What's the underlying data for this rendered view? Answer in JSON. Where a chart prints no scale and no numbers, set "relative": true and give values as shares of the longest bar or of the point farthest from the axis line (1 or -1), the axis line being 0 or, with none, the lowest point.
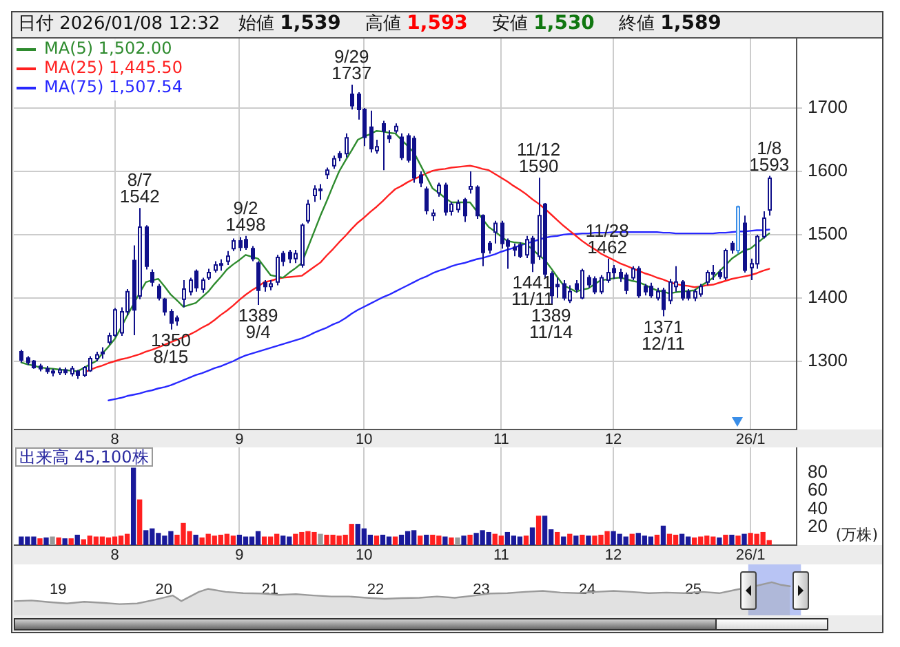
{
  "chart_data": [
    {
      "type": "candlestick",
      "title": "日付 2026/01/08 12:32",
      "annotations": [
        "始値 1,539",
        "高値 1,593",
        "安値 1,530",
        "終値 1,589",
        {
          "text": "8/7\n1542",
          "y": 1542
        },
        {
          "text": "1350\n8/15",
          "y": 1350
        },
        {
          "text": "9/2\n1498",
          "y": 1498
        },
        {
          "text": "1389\n9/4",
          "y": 1389
        },
        {
          "text": "9/29\n1737",
          "y": 1737
        },
        {
          "text": "1441\n11/11",
          "y": 1441
        },
        {
          "text": "11/12\n1590",
          "y": 1590
        },
        {
          "text": "1389\n11/14",
          "y": 1389
        },
        {
          "text": "11/28\n1462",
          "y": 1462
        },
        {
          "text": "1371\n12/11",
          "y": 1371
        },
        {
          "text": "1/8\n1593",
          "y": 1593
        }
      ],
      "categories": [
        null,
        null,
        null,
        null,
        null,
        null,
        null,
        null,
        null,
        null,
        null,
        null,
        null,
        null,
        null,
        "8",
        null,
        null,
        null,
        null,
        null,
        null,
        null,
        null,
        null,
        null,
        null,
        null,
        null,
        null,
        null,
        null,
        null,
        null,
        null,
        "9",
        null,
        null,
        null,
        null,
        null,
        null,
        null,
        null,
        null,
        null,
        null,
        null,
        null,
        null,
        null,
        null,
        null,
        null,
        null,
        "10",
        null,
        null,
        null,
        null,
        null,
        null,
        null,
        null,
        null,
        null,
        null,
        null,
        null,
        null,
        null,
        null,
        null,
        null,
        null,
        null,
        null,
        "11",
        null,
        null,
        null,
        null,
        null,
        null,
        null,
        null,
        null,
        null,
        null,
        null,
        null,
        null,
        null,
        null,
        null,
        "12",
        null,
        null,
        null,
        null,
        null,
        null,
        null,
        null,
        null,
        null,
        null,
        null,
        null,
        null,
        null,
        null,
        null,
        null,
        null,
        null,
        null,
        "26/1",
        null,
        null,
        null
      ],
      "ohlc": [
        [
          1315,
          1318,
          1298,
          1302
        ],
        [
          1305,
          1308,
          1294,
          1298
        ],
        [
          1300,
          1302,
          1288,
          1290
        ],
        [
          1292,
          1296,
          1284,
          1288
        ],
        [
          1288,
          1292,
          1280,
          1284
        ],
        [
          1284,
          1288,
          1276,
          1282
        ],
        [
          1282,
          1290,
          1278,
          1286
        ],
        [
          1286,
          1290,
          1278,
          1282
        ],
        [
          1280,
          1292,
          1276,
          1288
        ],
        [
          1284,
          1286,
          1272,
          1278
        ],
        [
          1278,
          1292,
          1275,
          1290
        ],
        [
          1285,
          1308,
          1283,
          1304
        ],
        [
          1304,
          1315,
          1300,
          1310
        ],
        [
          1312,
          1322,
          1304,
          1314
        ],
        [
          1330,
          1345,
          1326,
          1340
        ],
        [
          1341,
          1384,
          1338,
          1381
        ],
        [
          1345,
          1385,
          1340,
          1378
        ],
        [
          1378,
          1414,
          1372,
          1410
        ],
        [
          1459,
          1483,
          1341,
          1381
        ],
        [
          1403,
          1542,
          1398,
          1512
        ],
        [
          1512,
          1515,
          1445,
          1450
        ],
        [
          1440,
          1445,
          1418,
          1425
        ],
        [
          1418,
          1422,
          1396,
          1400
        ],
        [
          1398,
          1400,
          1372,
          1378
        ],
        [
          1378,
          1382,
          1350,
          1360
        ],
        [
          1368,
          1372,
          1356,
          1364
        ],
        [
          1398,
          1428,
          1385,
          1414
        ],
        [
          1410,
          1432,
          1404,
          1428
        ],
        [
          1442,
          1445,
          1410,
          1416
        ],
        [
          1414,
          1432,
          1408,
          1428
        ],
        [
          1432,
          1446,
          1428,
          1440
        ],
        [
          1444,
          1458,
          1440,
          1452
        ],
        [
          1452,
          1461,
          1443,
          1454
        ],
        [
          1458,
          1474,
          1452,
          1466
        ],
        [
          1478,
          1494,
          1474,
          1490
        ],
        [
          1490,
          1496,
          1474,
          1480
        ],
        [
          1492,
          1498,
          1476,
          1480
        ],
        [
          1478,
          1482,
          1458,
          1462
        ],
        [
          1455,
          1458,
          1389,
          1412
        ],
        [
          1424,
          1428,
          1410,
          1418
        ],
        [
          1418,
          1428,
          1412,
          1422
        ],
        [
          1425,
          1468,
          1420,
          1464
        ],
        [
          1470,
          1474,
          1450,
          1458
        ],
        [
          1472,
          1476,
          1455,
          1462
        ],
        [
          1462,
          1476,
          1455,
          1470
        ],
        [
          1452,
          1518,
          1448,
          1515
        ],
        [
          1522,
          1555,
          1518,
          1548
        ],
        [
          1562,
          1578,
          1552,
          1572
        ],
        [
          1570,
          1580,
          1555,
          1572
        ],
        [
          1595,
          1606,
          1588,
          1602
        ],
        [
          1609,
          1625,
          1604,
          1620
        ],
        [
          1628,
          1632,
          1616,
          1622
        ],
        [
          1628,
          1660,
          1622,
          1653
        ],
        [
          1722,
          1737,
          1698,
          1704
        ],
        [
          1722,
          1725,
          1682,
          1698
        ],
        [
          1698,
          1700,
          1640,
          1654
        ],
        [
          1670,
          1696,
          1630,
          1636
        ],
        [
          1633,
          1650,
          1628,
          1639
        ],
        [
          1675,
          1680,
          1602,
          1664
        ],
        [
          1656,
          1665,
          1645,
          1652
        ],
        [
          1664,
          1676,
          1660,
          1671
        ],
        [
          1654,
          1660,
          1618,
          1622
        ],
        [
          1656,
          1660,
          1614,
          1618
        ],
        [
          1652,
          1656,
          1582,
          1590
        ],
        [
          1594,
          1600,
          1575,
          1582
        ],
        [
          1572,
          1576,
          1532,
          1538
        ],
        [
          1530,
          1540,
          1522,
          1534
        ],
        [
          1566,
          1582,
          1560,
          1578
        ],
        [
          1578,
          1582,
          1530,
          1536
        ],
        [
          1537,
          1552,
          1530,
          1548
        ],
        [
          1540,
          1555,
          1535,
          1550
        ],
        [
          1555,
          1558,
          1520,
          1530
        ],
        [
          1572,
          1600,
          1565,
          1576
        ],
        [
          1575,
          1578,
          1525,
          1530
        ],
        [
          1530,
          1532,
          1450,
          1472
        ],
        [
          1486,
          1490,
          1470,
          1476
        ],
        [
          1504,
          1522,
          1486,
          1518
        ],
        [
          1518,
          1522,
          1478,
          1486
        ],
        [
          1490,
          1494,
          1446,
          1482
        ],
        [
          1480,
          1486,
          1466,
          1476
        ],
        [
          1484,
          1488,
          1463,
          1466
        ],
        [
          1468,
          1498,
          1463,
          1492
        ],
        [
          1494,
          1498,
          1441,
          1455
        ],
        [
          1466,
          1590,
          1460,
          1530
        ],
        [
          1548,
          1550,
          1432,
          1438
        ],
        [
          1438,
          1442,
          1389,
          1404
        ],
        [
          1421,
          1432,
          1400,
          1418
        ],
        [
          1422,
          1428,
          1396,
          1400
        ],
        [
          1396,
          1420,
          1392,
          1410
        ],
        [
          1422,
          1428,
          1408,
          1414
        ],
        [
          1400,
          1446,
          1398,
          1443
        ],
        [
          1432,
          1436,
          1416,
          1421
        ],
        [
          1430,
          1434,
          1406,
          1410
        ],
        [
          1410,
          1436,
          1406,
          1432
        ],
        [
          1428,
          1462,
          1424,
          1440
        ],
        [
          1446,
          1452,
          1430,
          1440
        ],
        [
          1440,
          1446,
          1425,
          1432
        ],
        [
          1436,
          1440,
          1406,
          1412
        ],
        [
          1432,
          1450,
          1428,
          1446
        ],
        [
          1446,
          1450,
          1400,
          1404
        ],
        [
          1418,
          1422,
          1404,
          1410
        ],
        [
          1418,
          1424,
          1400,
          1404
        ],
        [
          1400,
          1416,
          1396,
          1410
        ],
        [
          1412,
          1416,
          1371,
          1382
        ],
        [
          1396,
          1430,
          1390,
          1425
        ],
        [
          1418,
          1450,
          1410,
          1425
        ],
        [
          1425,
          1428,
          1396,
          1400
        ],
        [
          1410,
          1414,
          1396,
          1400
        ],
        [
          1400,
          1414,
          1395,
          1410
        ],
        [
          1406,
          1422,
          1402,
          1418
        ],
        [
          1425,
          1444,
          1420,
          1440
        ],
        [
          1438,
          1452,
          1428,
          1440
        ],
        [
          1440,
          1445,
          1430,
          1434
        ],
        [
          1432,
          1478,
          1428,
          1475
        ],
        [
          1486,
          1490,
          1470,
          1476
        ],
        [
          1475,
          1546,
          1470,
          1544
        ],
        [
          1518,
          1530,
          1440,
          1444
        ],
        [
          1448,
          1462,
          1428,
          1454
        ],
        [
          1454,
          1500,
          1446,
          1497
        ],
        [
          1497,
          1537,
          1494,
          1526
        ],
        [
          1539,
          1593,
          1530,
          1589
        ]
      ],
      "colors": [
        "#10108a",
        "#10108a",
        "#10108a",
        "#10108a",
        "#10108a",
        "#10108a",
        "#10108a",
        "#10108a",
        "#10108a",
        "#10108a",
        "#10108a",
        "#10108a",
        "#10108a",
        "#10108a",
        "#10108a",
        "#10108a",
        "#10108a",
        "#10108a",
        "#10108a",
        "#10108a",
        "#10108a",
        "#10108a",
        "#10108a",
        "#10108a",
        "#10108a",
        "#10108a",
        "#10108a",
        "#10108a",
        "#10108a",
        "#10108a",
        "#10108a",
        "#10108a",
        "#10108a",
        "#10108a",
        "#10108a",
        "#10108a",
        "#10108a",
        "#10108a",
        "#10108a",
        "#10108a",
        "#10108a",
        "#10108a",
        "#10108a",
        "#10108a",
        "#10108a",
        "#10108a",
        "#10108a",
        "#10108a",
        "#10108a",
        "#10108a",
        "#10108a",
        "#10108a",
        "#10108a",
        "#10108a",
        "#10108a",
        "#10108a",
        "#10108a",
        "#10108a",
        "#10108a",
        "#10108a",
        "#10108a",
        "#10108a",
        "#10108a",
        "#10108a",
        "#10108a",
        "#10108a",
        "#10108a",
        "#10108a",
        "#10108a",
        "#10108a",
        "#10108a",
        "#10108a",
        "#10108a",
        "#10108a",
        "#10108a",
        "#10108a",
        "#10108a",
        "#10108a",
        "#10108a",
        "#10108a",
        "#10108a",
        "#10108a",
        "#10108a",
        "#10108a",
        "#10108a",
        "#10108a",
        "#10108a",
        "#10108a",
        "#10108a",
        "#10108a",
        "#10108a",
        "#10108a",
        "#10108a",
        "#10108a",
        "#10108a",
        "#10108a",
        "#10108a",
        "#10108a",
        "#10108a",
        "#10108a",
        "#10108a",
        "#10108a",
        "#10108a",
        "#10108a",
        "#10108a",
        "#10108a",
        "#10108a",
        "#10108a",
        "#10108a",
        "#10108a",
        "#10108a",
        "#10108a",
        "#10108a",
        "#10108a",
        "#10108a",
        "#3a8ee8",
        "#10108a",
        "#10108a",
        "#10108a",
        "#10108a",
        "#10108a"
      ],
      "series": [
        {
          "type": "line",
          "name": "MA(5) 1,502.00",
          "color": "#2e8b2e",
          "values": [
            1298,
            1295,
            1293,
            1290,
            1289,
            1288,
            1287,
            1286,
            1285,
            1284,
            1289,
            1295,
            1300,
            1312,
            1323,
            1335,
            1353,
            1372,
            1390,
            1408,
            1425,
            1428,
            1430,
            1418,
            1405,
            1396,
            1386,
            1389,
            1392,
            1401,
            1410,
            1422,
            1433,
            1445,
            1453,
            1460,
            1468,
            1465,
            1462,
            1449,
            1436,
            1434,
            1432,
            1440,
            1447,
            1455,
            1480,
            1505,
            1530,
            1553,
            1577,
            1600,
            1617,
            1633,
            1650,
            1655,
            1659,
            1664,
            1663,
            1661,
            1660,
            1650,
            1640,
            1630,
            1611,
            1592,
            1573,
            1566,
            1558,
            1551,
            1551,
            1551,
            1551,
            1538,
            1525,
            1512,
            1505,
            1497,
            1490,
            1488,
            1487,
            1485,
            1477,
            1468,
            1460,
            1447,
            1433,
            1420,
            1415,
            1410,
            1413,
            1415,
            1422,
            1428,
            1429,
            1431,
            1432,
            1430,
            1427,
            1425,
            1421,
            1416,
            1412,
            1410,
            1407,
            1409,
            1410,
            1411,
            1412,
            1419,
            1425,
            1432,
            1442,
            1452,
            1462,
            1469,
            1475,
            1478,
            1486,
            1494,
            1502
          ]
        },
        {
          "type": "line",
          "name": "MA(25) 1,445.50",
          "color": "#ff2020",
          "values": [
            null,
            null,
            null,
            null,
            null,
            null,
            null,
            null,
            null,
            null,
            1282,
            1286,
            1290,
            1293,
            1297,
            1300,
            1303,
            1305,
            1308,
            1311,
            1315,
            1318,
            1322,
            1326,
            1330,
            1334,
            1338,
            1342,
            1347,
            1353,
            1358,
            1365,
            1373,
            1380,
            1388,
            1397,
            1405,
            1412,
            1418,
            1425,
            1427,
            1430,
            1432,
            1433,
            1434,
            1435,
            1442,
            1449,
            1456,
            1467,
            1477,
            1488,
            1498,
            1509,
            1519,
            1527,
            1536,
            1544,
            1553,
            1563,
            1572,
            1577,
            1583,
            1588,
            1592,
            1597,
            1601,
            1603,
            1604,
            1606,
            1607,
            1608,
            1609,
            1607,
            1604,
            1602,
            1596,
            1590,
            1584,
            1577,
            1571,
            1564,
            1556,
            1549,
            1541,
            1532,
            1523,
            1514,
            1506,
            1498,
            1490,
            1483,
            1477,
            1470,
            1465,
            1460,
            1455,
            1451,
            1447,
            1443,
            1439,
            1436,
            1432,
            1429,
            1425,
            1422,
            1420,
            1419,
            1417,
            1418,
            1420,
            1421,
            1424,
            1427,
            1430,
            1432,
            1434,
            1436,
            1439,
            1443,
            1446
          ]
        },
        {
          "type": "line",
          "name": "MA(75) 1,507.54",
          "color": "#2828ff",
          "values": [
            null,
            null,
            null,
            null,
            null,
            null,
            null,
            null,
            null,
            null,
            null,
            null,
            null,
            null,
            1238,
            1240,
            1242,
            1245,
            1247,
            1249,
            1252,
            1254,
            1257,
            1259,
            1262,
            1266,
            1270,
            1274,
            1278,
            1281,
            1285,
            1289,
            1292,
            1296,
            1300,
            1305,
            1309,
            1312,
            1315,
            1318,
            1321,
            1324,
            1327,
            1330,
            1333,
            1336,
            1340,
            1345,
            1349,
            1353,
            1358,
            1362,
            1368,
            1375,
            1381,
            1386,
            1391,
            1396,
            1401,
            1405,
            1410,
            1415,
            1420,
            1425,
            1430,
            1434,
            1439,
            1443,
            1446,
            1450,
            1453,
            1455,
            1458,
            1461,
            1463,
            1466,
            1469,
            1473,
            1476,
            1479,
            1483,
            1486,
            1489,
            1492,
            1495,
            1497,
            1498,
            1500,
            1501,
            1501,
            1502,
            1502,
            1503,
            1503,
            1503,
            1504,
            1504,
            1504,
            1504,
            1504,
            1504,
            1504,
            1504,
            1503,
            1503,
            1502,
            1502,
            1502,
            1502,
            1502,
            1502,
            1502,
            1503,
            1503,
            1504,
            1505,
            1505,
            1506,
            1507,
            1507,
            1508
          ]
        }
      ],
      "ylim": [
        1192,
        1810
      ],
      "yticks": [
        1300,
        1400,
        1500,
        1600,
        1700
      ],
      "grid": true,
      "legend": "top left"
    },
    {
      "type": "bar",
      "title": "出来高 45,100株",
      "ylabel": "(万株)",
      "categories": [
        null,
        null,
        null,
        null,
        null,
        null,
        null,
        null,
        null,
        null,
        null,
        null,
        null,
        null,
        null,
        "8",
        null,
        null,
        null,
        null,
        null,
        null,
        null,
        null,
        null,
        null,
        null,
        null,
        null,
        null,
        null,
        null,
        null,
        null,
        null,
        "9",
        null,
        null,
        null,
        null,
        null,
        null,
        null,
        null,
        null,
        null,
        null,
        null,
        null,
        null,
        null,
        null,
        null,
        null,
        null,
        "10",
        null,
        null,
        null,
        null,
        null,
        null,
        null,
        null,
        null,
        null,
        null,
        null,
        null,
        null,
        null,
        null,
        null,
        null,
        null,
        null,
        null,
        "11",
        null,
        null,
        null,
        null,
        null,
        null,
        null,
        null,
        null,
        null,
        null,
        null,
        null,
        null,
        null,
        null,
        null,
        "12",
        null,
        null,
        null,
        null,
        null,
        null,
        null,
        null,
        null,
        null,
        null,
        null,
        null,
        null,
        null,
        null,
        null,
        null,
        null,
        null,
        null,
        "26/1",
        null,
        null,
        null
      ],
      "values": [
        9,
        9,
        9,
        7,
        8,
        9,
        8,
        7,
        7,
        11,
        6,
        10,
        9,
        9,
        8,
        9,
        10,
        12,
        85,
        50,
        16,
        18,
        13,
        10,
        15,
        11,
        24,
        15,
        11,
        8,
        12,
        10,
        11,
        12,
        10,
        11,
        9,
        9,
        15,
        9,
        9,
        12,
        10,
        9,
        12,
        14,
        15,
        14,
        12,
        11,
        11,
        10,
        11,
        23,
        23,
        18,
        11,
        10,
        11,
        9,
        9,
        11,
        15,
        16,
        10,
        11,
        11,
        10,
        9,
        8,
        8,
        10,
        11,
        13,
        16,
        14,
        12,
        10,
        14,
        10,
        9,
        10,
        19,
        32,
        32,
        17,
        14,
        9,
        12,
        10,
        11,
        10,
        10,
        11,
        15,
        15,
        12,
        9,
        12,
        13,
        10,
        9,
        11,
        21,
        12,
        11,
        12,
        9,
        8,
        9,
        10,
        9,
        8,
        11,
        11,
        10,
        12,
        13,
        12,
        14,
        5
      ],
      "colors": [
        "#1a1a9a",
        "#1a1a9a",
        "#1a1a9a",
        "#ff2020",
        "#1a1a9a",
        "#999999",
        "#ff2020",
        "#1a1a9a",
        "#ff2020",
        "#1a1a9a",
        "#ff2020",
        "#ff2020",
        "#ff2020",
        "#ff2020",
        "#ff2020",
        "#ff2020",
        "#ff2020",
        "#ff2020",
        "#1a1a9a",
        "#ff2020",
        "#1a1a9a",
        "#1a1a9a",
        "#1a1a9a",
        "#1a1a9a",
        "#1a1a9a",
        "#ff2020",
        "#ff2020",
        "#ff2020",
        "#1a1a9a",
        "#ff2020",
        "#ff2020",
        "#ff2020",
        "#ff2020",
        "#ff2020",
        "#ff2020",
        "#1a1a9a",
        "#1a1a9a",
        "#1a1a9a",
        "#1a1a9a",
        "#ff2020",
        "#ff2020",
        "#ff2020",
        "#1a1a9a",
        "#1a1a9a",
        "#ff2020",
        "#ff2020",
        "#ff2020",
        "#ff2020",
        "#999999",
        "#ff2020",
        "#ff2020",
        "#ff2020",
        "#ff2020",
        "#ff2020",
        "#1a1a9a",
        "#1a1a9a",
        "#1a1a9a",
        "#ff2020",
        "#1a1a9a",
        "#1a1a9a",
        "#ff2020",
        "#1a1a9a",
        "#1a1a9a",
        "#1a1a9a",
        "#ff2020",
        "#1a1a9a",
        "#ff2020",
        "#ff2020",
        "#1a1a9a",
        "#ff2020",
        "#999999",
        "#1a1a9a",
        "#ff2020",
        "#1a1a9a",
        "#1a1a9a",
        "#1a1a9a",
        "#ff2020",
        "#ff2020",
        "#1a1a9a",
        "#1a1a9a",
        "#1a1a9a",
        "#ff2020",
        "#1a1a9a",
        "#ff2020",
        "#1a1a9a",
        "#1a1a9a",
        "#ff2020",
        "#1a1a9a",
        "#ff2020",
        "#1a1a9a",
        "#ff2020",
        "#1a1a9a",
        "#ff2020",
        "#ff2020",
        "#ff2020",
        "#1a1a9a",
        "#1a1a9a",
        "#1a1a9a",
        "#ff2020",
        "#1a1a9a",
        "#1a1a9a",
        "#1a1a9a",
        "#ff2020",
        "#1a1a9a",
        "#ff2020",
        "#ff2020",
        "#1a1a9a",
        "#1a1a9a",
        "#ff2020",
        "#ff2020",
        "#ff2020",
        "#ff2020",
        "#1a1a9a",
        "#ff2020",
        "#1a1a9a",
        "#ff2020",
        "#1a1a9a",
        "#ff2020",
        "#ff2020",
        "#ff2020",
        "#ff2020"
      ],
      "ylim": [
        0,
        108
      ],
      "yticks": [
        20,
        40,
        60,
        80
      ],
      "grid": "x"
    },
    {
      "type": "area",
      "relative": true,
      "color": "#9a9a9a",
      "x": [
        "2018-08",
        "2018-10",
        "2018-12",
        "2019-02",
        "2019-04",
        "2019-06",
        "2019-08",
        "2019-10",
        "2019-12",
        "2020-02",
        "2020-03",
        "2020-05",
        "2020-06",
        "2020-08",
        "2020-10",
        "2020-12",
        "2021-02",
        "2021-04",
        "2021-06",
        "2021-08",
        "2021-10",
        "2021-12",
        "2022-02",
        "2022-04",
        "2022-06",
        "2022-08",
        "2022-10",
        "2022-12",
        "2023-02",
        "2023-04",
        "2023-06",
        "2023-08",
        "2023-10",
        "2023-12",
        "2024-02",
        "2024-04",
        "2024-06",
        "2024-08",
        "2024-10",
        "2024-12",
        "2025-02",
        "2025-04",
        "2025-06",
        "2025-08",
        "2025-09-29",
        "2025-11",
        "2025-12"
      ],
      "values": [
        0.43,
        0.45,
        0.4,
        0.36,
        0.41,
        0.38,
        0.34,
        0.36,
        0.47,
        0.6,
        0.43,
        0.71,
        0.8,
        0.71,
        0.67,
        0.66,
        0.62,
        0.64,
        0.6,
        0.57,
        0.57,
        0.53,
        0.5,
        0.52,
        0.53,
        0.57,
        0.53,
        0.59,
        0.66,
        0.67,
        0.71,
        0.74,
        0.69,
        0.67,
        0.71,
        0.74,
        0.71,
        0.67,
        0.69,
        0.67,
        0.71,
        0.67,
        0.78,
        0.88,
        1,
        0.92,
        0.88
      ],
      "xlim": [
        "2018-08-01",
        "2026-10-15"
      ],
      "xticks": [
        {
          "value": "2019-01-01",
          "label": "19"
        },
        {
          "value": "2020-01-01",
          "label": "20"
        },
        {
          "value": "2021-01-01",
          "label": "21"
        },
        {
          "value": "2022-01-01",
          "label": "22"
        },
        {
          "value": "2023-01-01",
          "label": "23"
        },
        {
          "value": "2024-01-01",
          "label": "24"
        },
        {
          "value": "2025-01-01",
          "label": "25"
        }
      ],
      "bands": [
        {
          "axis": "x",
          "from": "2025-07-10",
          "to": "2026-01-08",
          "color": "#b8c4f4"
        }
      ]
    }
  ]
}
